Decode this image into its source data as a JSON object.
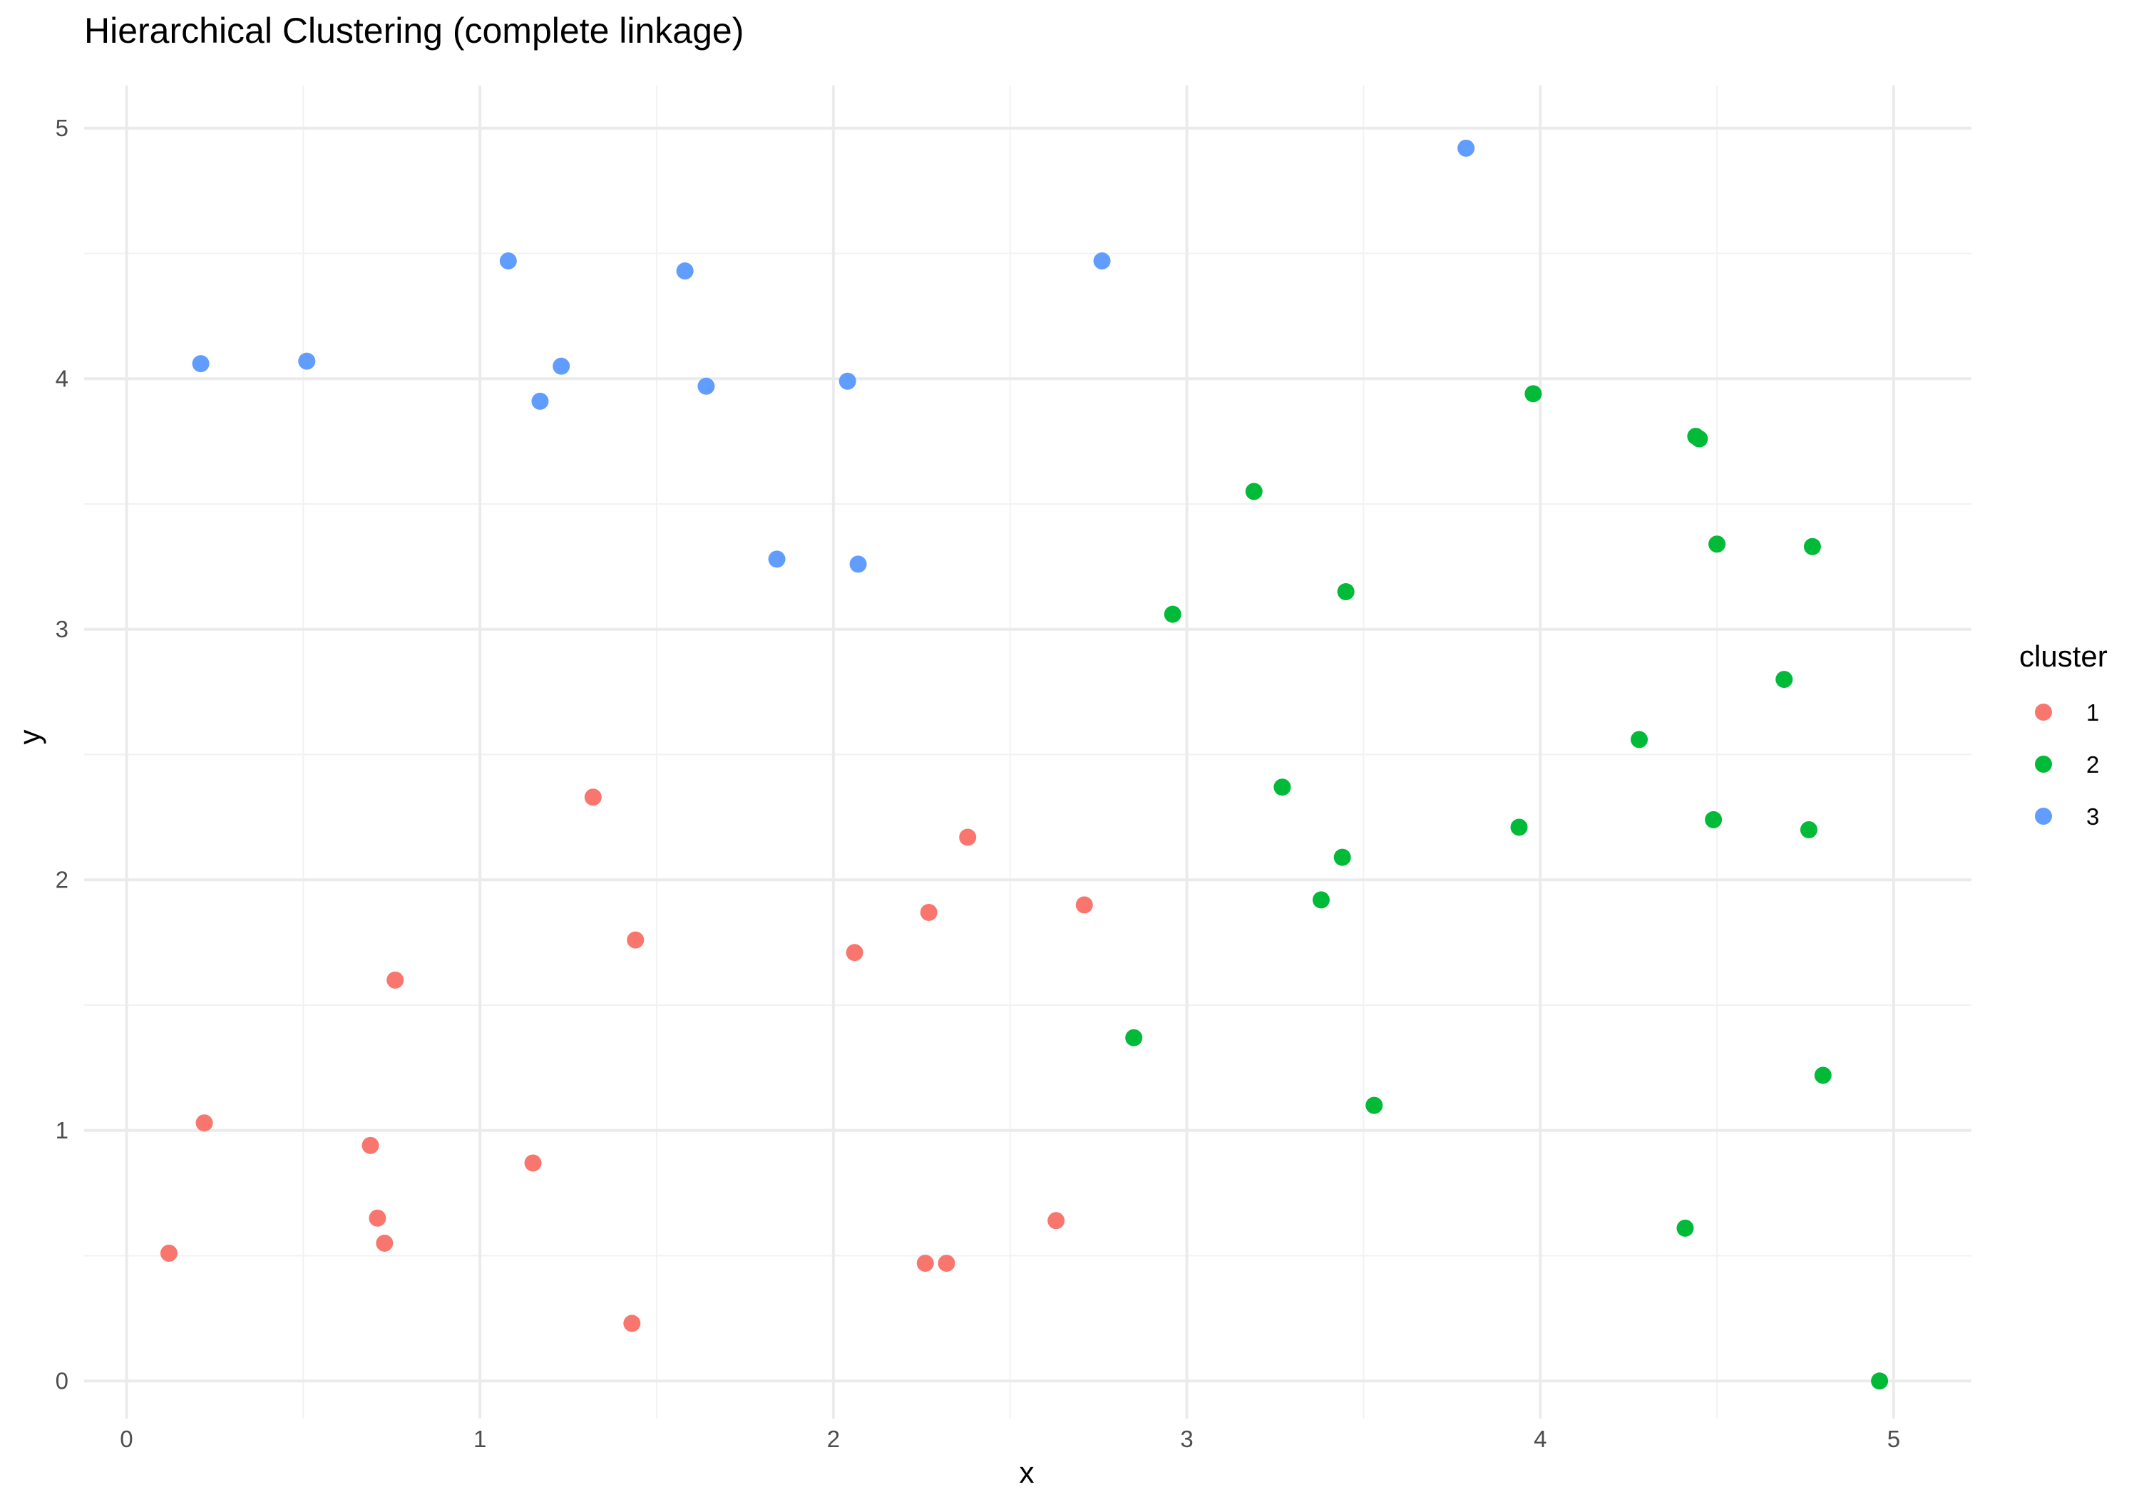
{
  "chart_data": {
    "type": "scatter",
    "title": "Hierarchical Clustering (complete linkage)",
    "xlabel": "x",
    "ylabel": "y",
    "xlim": [
      -0.12,
      5.22
    ],
    "ylim": [
      -0.15,
      5.17
    ],
    "x_ticks": [
      "0",
      "1",
      "2",
      "3",
      "4",
      "5"
    ],
    "y_ticks": [
      "0",
      "1",
      "2",
      "3",
      "4",
      "5"
    ],
    "grid": true,
    "legend": {
      "title": "cluster",
      "placement": "right",
      "entries": [
        "1",
        "2",
        "3"
      ]
    },
    "series": [
      {
        "name": "1",
        "color": "#F8766D",
        "points": [
          [
            0.12,
            0.51
          ],
          [
            0.22,
            1.03
          ],
          [
            0.69,
            0.94
          ],
          [
            0.71,
            0.65
          ],
          [
            0.73,
            0.55
          ],
          [
            0.76,
            1.6
          ],
          [
            1.15,
            0.87
          ],
          [
            1.32,
            2.33
          ],
          [
            1.43,
            0.23
          ],
          [
            1.44,
            1.76
          ],
          [
            2.06,
            1.71
          ],
          [
            2.26,
            0.47
          ],
          [
            2.27,
            1.87
          ],
          [
            2.32,
            0.47
          ],
          [
            2.38,
            2.17
          ],
          [
            2.63,
            0.64
          ],
          [
            2.71,
            1.9
          ]
        ]
      },
      {
        "name": "2",
        "color": "#00BA38",
        "points": [
          [
            2.85,
            1.37
          ],
          [
            2.96,
            3.06
          ],
          [
            3.19,
            3.55
          ],
          [
            3.27,
            2.37
          ],
          [
            3.38,
            1.92
          ],
          [
            3.44,
            2.09
          ],
          [
            3.45,
            3.15
          ],
          [
            3.53,
            1.1
          ],
          [
            3.94,
            2.21
          ],
          [
            3.98,
            3.94
          ],
          [
            4.28,
            2.56
          ],
          [
            4.41,
            0.61
          ],
          [
            4.44,
            3.77
          ],
          [
            4.45,
            3.76
          ],
          [
            4.49,
            2.24
          ],
          [
            4.5,
            3.34
          ],
          [
            4.69,
            2.8
          ],
          [
            4.76,
            2.2
          ],
          [
            4.77,
            3.33
          ],
          [
            4.8,
            1.22
          ],
          [
            4.96,
            0.0
          ]
        ]
      },
      {
        "name": "3",
        "color": "#619CFF",
        "points": [
          [
            0.21,
            4.06
          ],
          [
            0.51,
            4.07
          ],
          [
            1.08,
            4.47
          ],
          [
            1.17,
            3.91
          ],
          [
            1.23,
            4.05
          ],
          [
            1.58,
            4.43
          ],
          [
            1.64,
            3.97
          ],
          [
            1.84,
            3.28
          ],
          [
            2.04,
            3.99
          ],
          [
            2.07,
            3.26
          ],
          [
            2.76,
            4.47
          ],
          [
            3.79,
            4.92
          ]
        ]
      }
    ]
  }
}
